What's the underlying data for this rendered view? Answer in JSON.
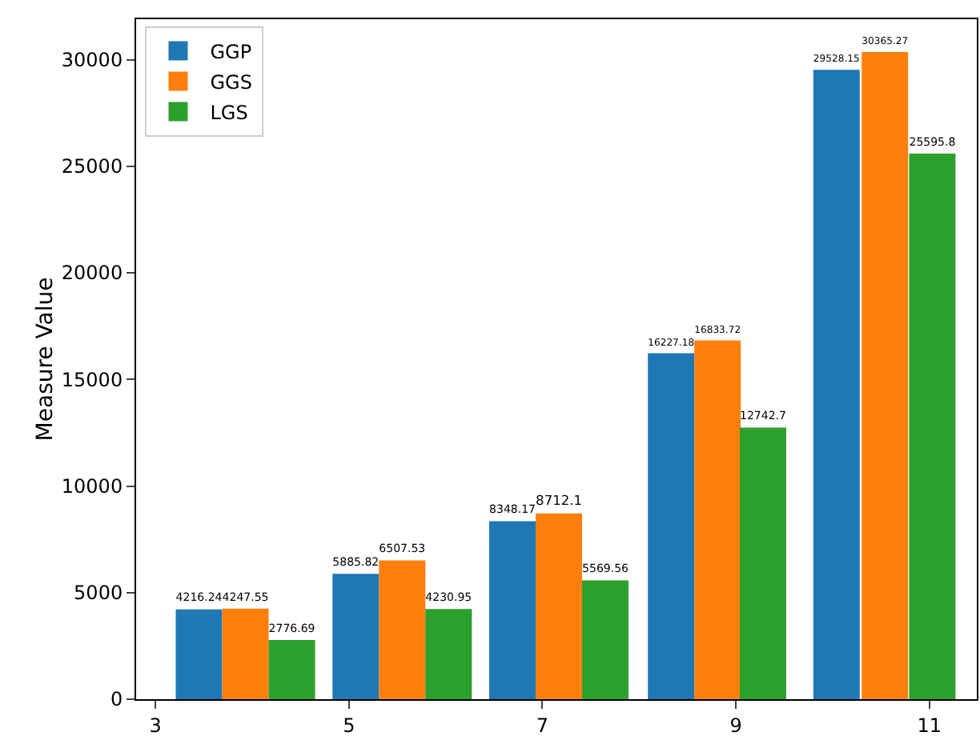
{
  "chart_data": {
    "type": "bar",
    "ylabel": "Measure Value",
    "xlim": [
      2.8,
      11.49
    ],
    "xticks": [
      3,
      5,
      7,
      9,
      11
    ],
    "ylim": [
      0,
      31900
    ],
    "yticks": [
      0,
      5000,
      10000,
      15000,
      20000,
      25000,
      30000
    ],
    "grid": false,
    "legend": "top left",
    "data_labels": true,
    "series": [
      {
        "name": "GGP",
        "color": "#1f77b4",
        "x": [
          3.45,
          5.07,
          6.69,
          8.33,
          10.04
        ],
        "values": [
          4216.24,
          5885.82,
          8348.17,
          16227.18,
          29528.15
        ]
      },
      {
        "name": "GGS",
        "color": "#ff7f0e",
        "x": [
          3.93,
          5.55,
          7.17,
          8.81,
          10.54
        ],
        "values": [
          4247.55,
          6507.53,
          8712.1,
          16833.72,
          30365.27
        ]
      },
      {
        "name": "LGS",
        "color": "#2ca02c",
        "x": [
          4.41,
          6.03,
          7.65,
          9.28,
          11.03
        ],
        "values": [
          2776.69,
          4230.95,
          5569.56,
          12742.7,
          25595.8
        ]
      }
    ]
  }
}
